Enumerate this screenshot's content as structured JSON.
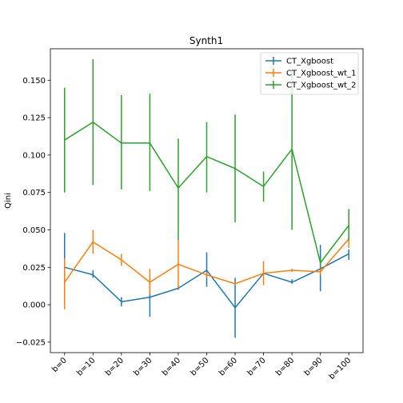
{
  "chart_data": {
    "type": "line",
    "title": "Synth1",
    "xlabel": "",
    "ylabel": "Qini",
    "categories": [
      "b=0",
      "b=10",
      "b=20",
      "b=30",
      "b=40",
      "b=50",
      "b=60",
      "b=70",
      "b=80",
      "b=90",
      "b=100"
    ],
    "ylim": [
      -0.032,
      0.171
    ],
    "yticks": [
      -0.025,
      0.0,
      0.025,
      0.05,
      0.075,
      0.1,
      0.125,
      0.15
    ],
    "ytick_labels": [
      "−0.025",
      "0.000",
      "0.025",
      "0.050",
      "0.075",
      "0.100",
      "0.125",
      "0.150"
    ],
    "grid": false,
    "legend_position": "top-right",
    "series": [
      {
        "name": "CT_Xgboost",
        "color": "#1f77b4",
        "values": [
          0.025,
          0.02,
          0.002,
          0.005,
          0.011,
          0.023,
          -0.002,
          0.021,
          0.015,
          0.024,
          0.034
        ],
        "err_low": [
          0.001,
          0.018,
          -0.001,
          -0.008,
          0.01,
          0.012,
          -0.022,
          0.02,
          0.014,
          0.009,
          0.03
        ],
        "err_high": [
          0.048,
          0.023,
          0.005,
          0.016,
          0.013,
          0.035,
          0.018,
          0.023,
          0.017,
          0.04,
          0.037
        ]
      },
      {
        "name": "CT_Xgboost_wt_1",
        "color": "#ff7f0e",
        "values": [
          0.015,
          0.042,
          0.03,
          0.015,
          0.027,
          0.02,
          0.014,
          0.021,
          0.023,
          0.022,
          0.044
        ],
        "err_low": [
          -0.003,
          0.034,
          0.026,
          0.007,
          0.011,
          0.018,
          0.013,
          0.013,
          0.022,
          0.02,
          0.038
        ],
        "err_high": [
          0.031,
          0.05,
          0.034,
          0.024,
          0.043,
          0.022,
          0.015,
          0.029,
          0.024,
          0.024,
          0.05
        ]
      },
      {
        "name": "CT_Xgboost_wt_2",
        "color": "#2ca02c",
        "values": [
          0.11,
          0.122,
          0.108,
          0.108,
          0.078,
          0.099,
          0.091,
          0.079,
          0.104,
          0.028,
          0.053
        ],
        "err_low": [
          0.075,
          0.08,
          0.077,
          0.076,
          0.043,
          0.075,
          0.055,
          0.069,
          0.05,
          0.025,
          0.043
        ],
        "err_high": [
          0.145,
          0.164,
          0.14,
          0.141,
          0.111,
          0.122,
          0.127,
          0.089,
          0.156,
          0.031,
          0.064
        ]
      }
    ]
  }
}
